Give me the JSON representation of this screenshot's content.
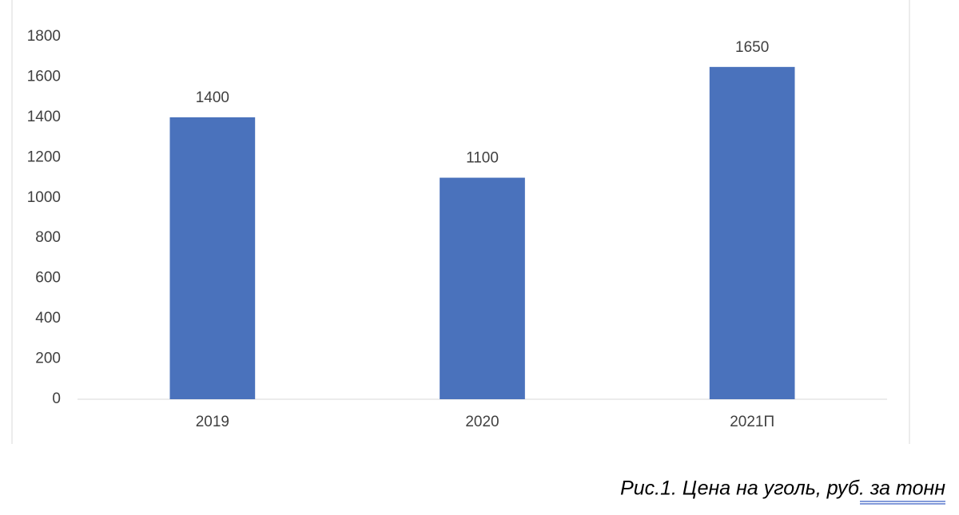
{
  "chart_data": {
    "type": "bar",
    "categories": [
      "2019",
      "2020",
      "2021П"
    ],
    "values": [
      1400,
      1100,
      1650
    ],
    "color": "#4a72bc",
    "ylim": [
      0,
      1800
    ],
    "yticks": [
      0,
      200,
      400,
      600,
      800,
      1000,
      1200,
      1400,
      1600,
      1800
    ],
    "grid": false,
    "data_labels": true,
    "caption": "Рис.1. Цена на уголь, руб. за тонн"
  }
}
